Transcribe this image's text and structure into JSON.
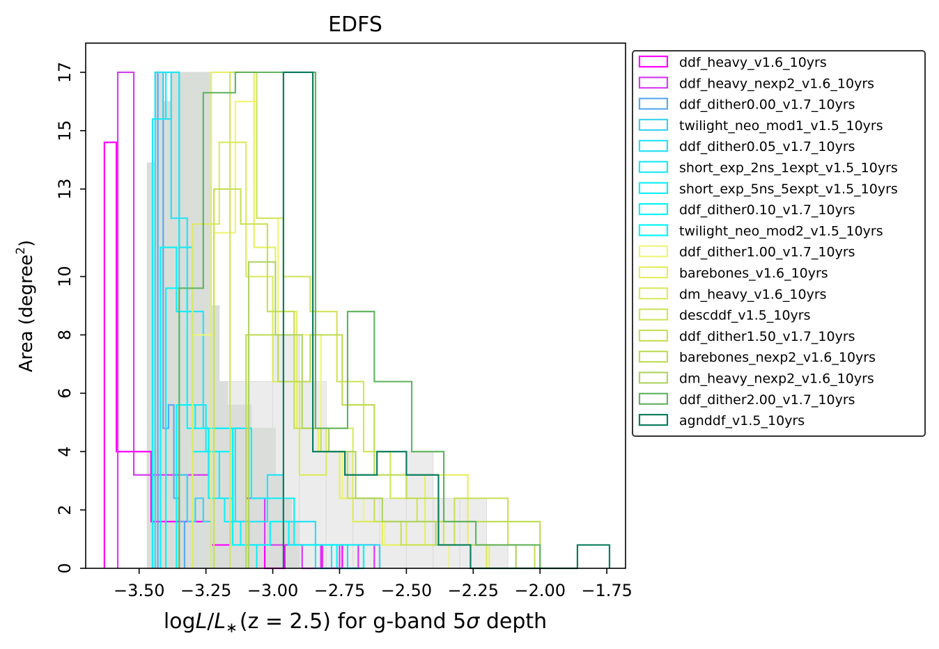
{
  "chart_data": {
    "type": "histogram",
    "title": "EDFS",
    "xlabel_parts": {
      "prefix": "log",
      "L": "L",
      "sub": "∗",
      "z": "(z = 2.5)",
      "suffix": " for g-band 5",
      "sigma": "σ",
      "tail": " depth"
    },
    "ylabel_parts": {
      "main": "Area (degree",
      "sup": "2",
      "close": ")"
    },
    "xlim": [
      -3.7,
      -1.68
    ],
    "ylim": [
      0,
      18
    ],
    "xticks": [
      -3.5,
      -3.25,
      -3.0,
      -2.75,
      -2.5,
      -2.25,
      -2.0,
      -1.75
    ],
    "xtick_labels": [
      "−3.50",
      "−3.25",
      "−3.00",
      "−2.75",
      "−2.50",
      "−2.25",
      "−2.00",
      "−1.75"
    ],
    "yticks": [
      0,
      2,
      4,
      6,
      8,
      10,
      13,
      15,
      17
    ],
    "ytick_labels": [
      "0",
      "2",
      "4",
      "6",
      "8",
      "10",
      "13",
      "15",
      "17"
    ],
    "legend_position": "outside-right-top",
    "background_histograms": [
      {
        "color": "#d7dcd7",
        "edges": [
          -3.47,
          -3.44,
          -3.41,
          -3.38,
          -3.35,
          -3.32,
          -3.29,
          -3.26,
          -3.23,
          -3.2,
          -3.17,
          -3.14,
          -3.11,
          -3.08,
          -3.05,
          -3.02,
          -2.99,
          -2.96,
          -2.93,
          -2.9
        ],
        "counts": [
          13.9,
          17,
          16,
          17,
          17,
          17,
          17,
          17,
          9,
          6.4,
          5.6,
          5.6,
          5.6,
          4.8,
          4.8,
          4.8,
          3.2,
          2.4,
          1.6
        ]
      },
      {
        "color": "#dcdcdc",
        "edges": [
          -3.2,
          -3.1,
          -3.0,
          -2.9,
          -2.8,
          -2.7,
          -2.6,
          -2.5,
          -2.4,
          -2.3,
          -2.2,
          -2.12
        ],
        "counts": [
          6.4,
          6.4,
          8,
          6.4,
          4,
          2.4,
          2.4,
          4,
          2.4,
          2.4,
          0.8
        ]
      }
    ],
    "series": [
      {
        "name": "ddf_heavy_v1.6_10yrs",
        "color": "#ff00ff",
        "edges": [
          -3.63,
          -3.585,
          -3.515,
          -3.455,
          -3.38,
          -3.31,
          -3.23,
          -3.16,
          -3.09,
          -3.03,
          -2.955,
          -2.885,
          -2.815,
          -2.74,
          -2.665,
          -2.6
        ],
        "counts": [
          14.6,
          4,
          4,
          1.6,
          1.6,
          1.6,
          0.8,
          1.6,
          0.8,
          0,
          0.8,
          0.8,
          0,
          0.8,
          0.8
        ]
      },
      {
        "name": "ddf_heavy_nexp2_v1.6_10yrs",
        "color": "#d63cf0",
        "edges": [
          -3.58,
          -3.52,
          -3.45,
          -3.38,
          -3.31,
          -3.24,
          -3.17,
          -3.1,
          -3.03,
          -2.96,
          -2.89,
          -2.82,
          -2.75,
          -2.68,
          -2.62
        ],
        "counts": [
          17,
          3.2,
          3.2,
          3.2,
          3.2,
          4.8,
          4.8,
          2.4,
          0.8,
          0.8,
          0,
          0.8,
          0,
          0.8
        ]
      },
      {
        "name": "ddf_dither0.00_v1.7_10yrs",
        "color": "#5aaaf0",
        "edges": [
          -3.43,
          -3.41,
          -3.39,
          -3.37,
          -3.35,
          -3.33
        ],
        "counts": [
          17,
          4.8,
          5.6,
          2.4,
          1.6
        ]
      },
      {
        "name": "twilight_neo_mod1_v1.5_10yrs",
        "color": "#3cd2f0",
        "edges": [
          -3.44,
          -3.41,
          -3.38,
          -3.35,
          -3.32,
          -3.29,
          -3.26,
          -3.23
        ],
        "counts": [
          17,
          15.4,
          17,
          3.2,
          1.6,
          2.4,
          1.6
        ]
      },
      {
        "name": "ddf_dither0.05_v1.7_10yrs",
        "color": "#28e1f5",
        "edges": [
          -3.44,
          -3.38,
          -3.32,
          -3.26,
          -3.2,
          -3.14,
          -3.08,
          -3.02,
          -2.96,
          -2.9,
          -2.84,
          -2.78,
          -2.72,
          -2.66,
          -2.6
        ],
        "counts": [
          17,
          12,
          8.8,
          4.8,
          4.8,
          1.6,
          1.6,
          3.2,
          1.6,
          1.6,
          0,
          0.8,
          0,
          0.8
        ]
      },
      {
        "name": "short_exp_2ns_1expt_v1.5_10yrs",
        "color": "#1ee8f5",
        "edges": [
          -3.45,
          -3.4,
          -3.35,
          -3.3,
          -3.25,
          -3.2,
          -3.15,
          -3.1
        ],
        "counts": [
          15.4,
          17,
          11,
          5.6,
          4,
          2.4,
          0.8
        ]
      },
      {
        "name": "short_exp_5ns_5expt_v1.5_10yrs",
        "color": "#14eef5",
        "edges": [
          -3.42,
          -3.36,
          -3.3,
          -3.24,
          -3.18,
          -3.12,
          -3.06
        ],
        "counts": [
          11,
          8.8,
          4,
          2.4,
          1.6,
          0.8
        ]
      },
      {
        "name": "ddf_dither0.10_v1.7_10yrs",
        "color": "#0cf2f8",
        "edges": [
          -3.4,
          -3.32,
          -3.24,
          -3.16,
          -3.08,
          -3.0,
          -2.92,
          -2.84,
          -2.76,
          -2.68
        ],
        "counts": [
          9.6,
          4.8,
          4,
          4.8,
          2.4,
          2.4,
          0.8,
          0.8,
          0
        ]
      },
      {
        "name": "twilight_neo_mod2_v1.5_10yrs",
        "color": "#05f5fa",
        "edges": [
          -3.36,
          -3.29,
          -3.22,
          -3.15,
          -3.08,
          -3.01,
          -2.94,
          -2.87,
          -2.8,
          -2.73,
          -2.66
        ],
        "counts": [
          5.6,
          4.8,
          4.8,
          0.8,
          0.8,
          1.6,
          0.8,
          0.8,
          0.8,
          0.8
        ]
      },
      {
        "name": "ddf_dither1.00_v1.7_10yrs",
        "color": "#f0f578",
        "edges": [
          -3.3,
          -3.22,
          -3.14,
          -3.06,
          -2.98,
          -2.9,
          -2.82,
          -2.74,
          -2.66,
          -2.58,
          -2.5,
          -2.42,
          -2.34
        ],
        "counts": [
          8,
          11.5,
          16,
          12,
          8,
          8,
          4,
          2.4,
          1.6,
          0.8,
          0.8,
          0.8
        ]
      },
      {
        "name": "barebones_v1.6_10yrs",
        "color": "#e6f064",
        "edges": [
          -3.23,
          -3.15,
          -3.07,
          -2.99,
          -2.91,
          -2.83,
          -2.75,
          -2.67,
          -2.59,
          -2.51,
          -2.43,
          -2.35,
          -2.27,
          -2.19
        ],
        "counts": [
          17,
          17,
          11,
          8.8,
          4.8,
          4,
          2.4,
          2.4,
          0.8,
          0.8,
          3.2,
          3.2,
          0.8
        ]
      },
      {
        "name": "dm_heavy_v1.6_10yrs",
        "color": "#dcea64",
        "edges": [
          -3.3,
          -3.2,
          -3.1,
          -3.0,
          -2.9,
          -2.8,
          -2.7,
          -2.6,
          -2.5,
          -2.4,
          -2.3,
          -2.2
        ],
        "counts": [
          11.8,
          14.6,
          10,
          6.4,
          3.2,
          4.8,
          1.6,
          1.6,
          0.8,
          0.8,
          0.8
        ]
      },
      {
        "name": "descddf_v1.5_10yrs",
        "color": "#d2e45f",
        "edges": [
          -3.16,
          -3.06,
          -2.96,
          -2.86,
          -2.76,
          -2.66,
          -2.56,
          -2.46,
          -2.36,
          -2.26,
          -2.16,
          -2.06,
          -2.0
        ],
        "counts": [
          17,
          12,
          10,
          8.8,
          6.4,
          4,
          2.4,
          1.6,
          0.8,
          0.8,
          0.8,
          0.8
        ]
      },
      {
        "name": "ddf_dither1.50_v1.7_10yrs",
        "color": "#c8e05a",
        "edges": [
          -3.22,
          -3.12,
          -3.02,
          -2.92,
          -2.82,
          -2.72,
          -2.62,
          -2.52,
          -2.42,
          -2.32,
          -2.22,
          -2.12,
          -2.02
        ],
        "counts": [
          13,
          11.8,
          8.8,
          4.8,
          4,
          2.4,
          1.6,
          0.8,
          0.8,
          2.4,
          2.4,
          0.8
        ]
      },
      {
        "name": "barebones_nexp2_v1.6_10yrs",
        "color": "#c0dc58",
        "edges": [
          -3.1,
          -2.98,
          -2.86,
          -2.74,
          -2.62,
          -2.5,
          -2.38,
          -2.26,
          -2.14,
          -2.0
        ],
        "counts": [
          8,
          6.4,
          8,
          5.6,
          3.2,
          2.4,
          1.6,
          1.6,
          1.6
        ]
      },
      {
        "name": "dm_heavy_nexp2_v1.6_10yrs",
        "color": "#b0d464",
        "edges": [
          -3.09,
          -2.99,
          -2.89,
          -2.79,
          -2.69,
          -2.59,
          -2.49,
          -2.39,
          -2.29,
          -2.19,
          -2.09
        ],
        "counts": [
          10.5,
          8,
          4.8,
          4,
          2.4,
          1.6,
          1.6,
          0.8,
          0.8,
          0.8
        ]
      },
      {
        "name": "ddf_dither2.00_v1.7_10yrs",
        "color": "#64b464",
        "edges": [
          -3.35,
          -3.26,
          -3.14,
          -3.02,
          -2.84,
          -2.72,
          -2.62,
          -2.48,
          -2.36,
          -2.24,
          -2.12,
          -2.0
        ],
        "counts": [
          9.6,
          16.3,
          17,
          17,
          4.8,
          8.8,
          6.4,
          4,
          1.6,
          0.8,
          0.8
        ]
      },
      {
        "name": "agnddf_v1.5_10yrs",
        "color": "#0a7d5f",
        "edges": [
          -2.96,
          -2.85,
          -2.73,
          -2.61,
          -2.5,
          -2.38,
          -2.26,
          -2.22,
          -1.86,
          -1.74
        ],
        "counts": [
          17,
          4,
          3.2,
          4,
          3.2,
          0.8,
          0,
          0,
          0.8
        ]
      }
    ]
  }
}
